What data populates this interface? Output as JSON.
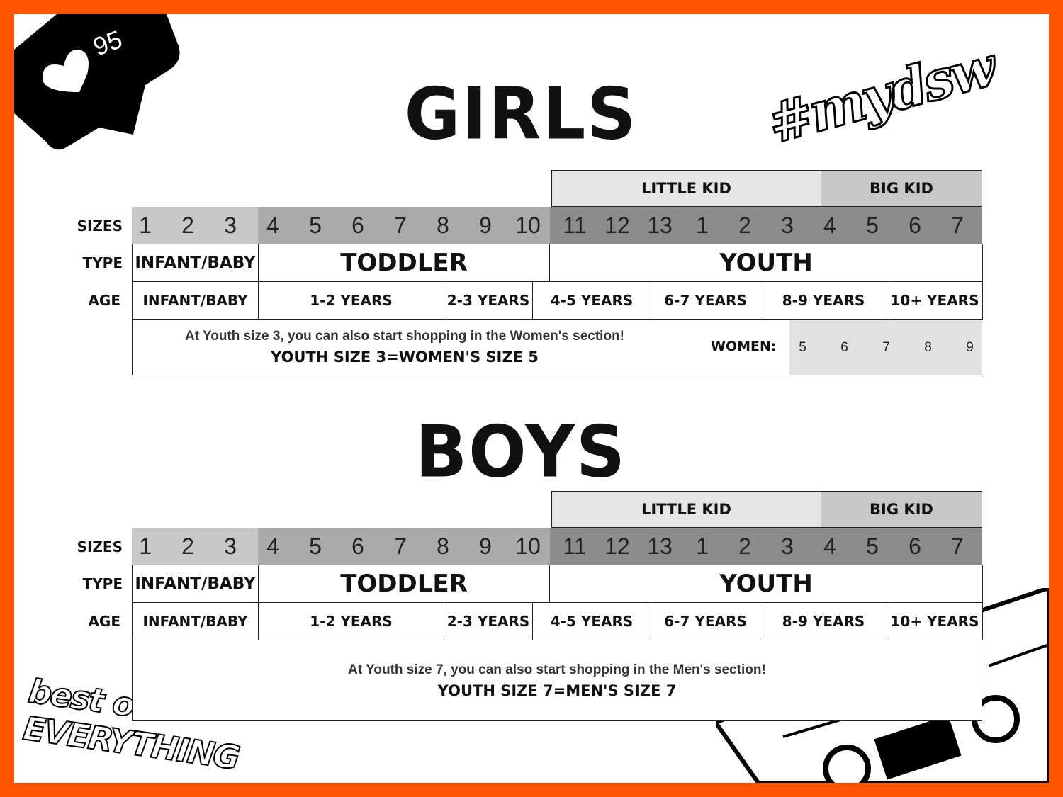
{
  "badge": {
    "count": "95",
    "icon": "heart-icon"
  },
  "hashtag": "#mydsw",
  "logo_text": "best of EVERYTHING",
  "colors": {
    "border": "#ff5500",
    "sizes_infant": "#c8c8c8",
    "sizes_toddler": "#aaaaaa",
    "sizes_youth": "#8c8c8c",
    "little_kid": "#e6e6e6",
    "big_kid": "#c8c8c8",
    "women": "#e2e2e2"
  },
  "charts": [
    {
      "title": "GIRLS",
      "groups": {
        "little_kid": "LITTLE KID",
        "big_kid": "BIG KID"
      },
      "row_labels": {
        "sizes": "SIZES",
        "type": "TYPE",
        "age": "AGE"
      },
      "sizes": [
        "1",
        "2",
        "3",
        "4",
        "5",
        "6",
        "7",
        "8",
        "9",
        "10",
        "11",
        "12",
        "13",
        "1",
        "2",
        "3",
        "4",
        "5",
        "6",
        "7"
      ],
      "types": [
        "INFANT/BABY",
        "TODDLER",
        "YOUTH"
      ],
      "ages": [
        "INFANT/BABY",
        "1-2 YEARS",
        "2-3 YEARS",
        "4-5 YEARS",
        "6-7 YEARS",
        "8-9 YEARS",
        "10+ YEARS"
      ],
      "note": "At Youth size 3, you can also start shopping in the Women's section!",
      "note_bold": "YOUTH SIZE 3=WOMEN'S SIZE 5",
      "women_label": "WOMEN:",
      "women_sizes": [
        "5",
        "6",
        "7",
        "8",
        "9"
      ]
    },
    {
      "title": "BOYS",
      "groups": {
        "little_kid": "LITTLE KID",
        "big_kid": "BIG KID"
      },
      "row_labels": {
        "sizes": "SIZES",
        "type": "TYPE",
        "age": "AGE"
      },
      "sizes": [
        "1",
        "2",
        "3",
        "4",
        "5",
        "6",
        "7",
        "8",
        "9",
        "10",
        "11",
        "12",
        "13",
        "1",
        "2",
        "3",
        "4",
        "5",
        "6",
        "7"
      ],
      "types": [
        "INFANT/BABY",
        "TODDLER",
        "YOUTH"
      ],
      "ages": [
        "INFANT/BABY",
        "1-2 YEARS",
        "2-3 YEARS",
        "4-5 YEARS",
        "6-7 YEARS",
        "8-9 YEARS",
        "10+ YEARS"
      ],
      "note": "At Youth size 7, you can also start shopping in the Men's section!",
      "note_bold": "YOUTH SIZE 7=MEN'S SIZE 7"
    }
  ]
}
